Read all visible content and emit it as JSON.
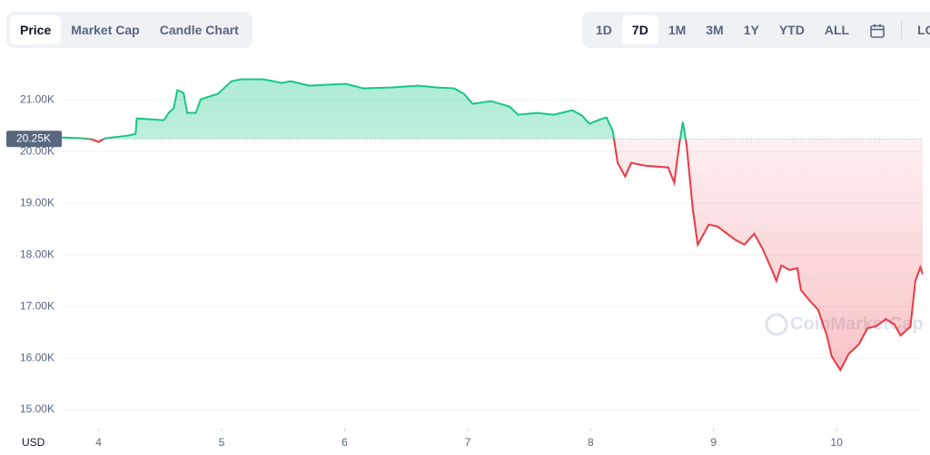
{
  "tabs": [
    "Price",
    "Market Cap",
    "Candle Chart"
  ],
  "active_tab": 0,
  "ranges": [
    "1D",
    "7D",
    "1M",
    "3M",
    "1Y",
    "YTD",
    "ALL"
  ],
  "active_range": 1,
  "log_label": "LOG",
  "chart_data": {
    "type": "line",
    "currency": "USD",
    "watermark": "CoinMarketCap",
    "x": [
      3.7,
      3.87,
      3.94,
      4.0,
      4.05,
      4.24,
      4.3,
      4.31,
      4.53,
      4.57,
      4.61,
      4.64,
      4.69,
      4.72,
      4.79,
      4.83,
      4.97,
      5.08,
      5.16,
      5.34,
      5.49,
      5.56,
      5.71,
      6.01,
      6.15,
      6.38,
      6.6,
      6.75,
      6.89,
      6.97,
      7.04,
      7.19,
      7.34,
      7.41,
      7.56,
      7.7,
      7.85,
      7.93,
      7.99,
      8.08,
      8.13,
      8.18,
      8.22,
      8.28,
      8.33,
      8.44,
      8.63,
      8.68,
      8.72,
      8.75,
      8.78,
      8.83,
      8.87,
      8.92,
      8.96,
      9.03,
      9.11,
      9.18,
      9.25,
      9.33,
      9.4,
      9.48,
      9.51,
      9.55,
      9.62,
      9.68,
      9.71,
      9.77,
      9.85,
      9.92,
      9.96,
      10.03,
      10.1,
      10.18,
      10.25,
      10.32,
      10.4,
      10.47,
      10.52,
      10.6,
      10.64,
      10.68,
      10.7
    ],
    "series": [
      {
        "name": "Price",
        "color_up": "#16c784",
        "color_down": "#ea3943",
        "values": [
          20278,
          20261,
          20243,
          20190,
          20261,
          20313,
          20349,
          20648,
          20613,
          20754,
          20842,
          21194,
          21141,
          20754,
          20754,
          21018,
          21123,
          21370,
          21405,
          21405,
          21335,
          21370,
          21282,
          21317,
          21229,
          21246,
          21282,
          21246,
          21229,
          21123,
          20930,
          20982,
          20877,
          20718,
          20754,
          20718,
          20806,
          20701,
          20542,
          20630,
          20665,
          20401,
          19785,
          19521,
          19785,
          19732,
          19697,
          19398,
          20137,
          20577,
          20137,
          18905,
          18201,
          18412,
          18588,
          18553,
          18412,
          18289,
          18201,
          18412,
          18113,
          17673,
          17497,
          17796,
          17708,
          17743,
          17320,
          17144,
          16933,
          16440,
          16035,
          15771,
          16088,
          16264,
          16583,
          16616,
          16757,
          16651,
          16440,
          16616,
          17496,
          17760,
          17620
        ]
      }
    ],
    "reference": {
      "value": 20250,
      "label": "20.25K"
    },
    "xlim": [
      3.7,
      10.7
    ],
    "xticks": [
      4,
      5,
      6,
      7,
      8,
      9,
      10
    ],
    "ylim": [
      14650,
      21800
    ],
    "yticks": [
      {
        "value": 15000,
        "label": "15.00K"
      },
      {
        "value": 16000,
        "label": "16.00K"
      },
      {
        "value": 17000,
        "label": "17.00K"
      },
      {
        "value": 18000,
        "label": "18.00K"
      },
      {
        "value": 19000,
        "label": "19.00K"
      },
      {
        "value": 20000,
        "label": "20.00K"
      },
      {
        "value": 21000,
        "label": "21.00K"
      }
    ],
    "grid": true
  }
}
